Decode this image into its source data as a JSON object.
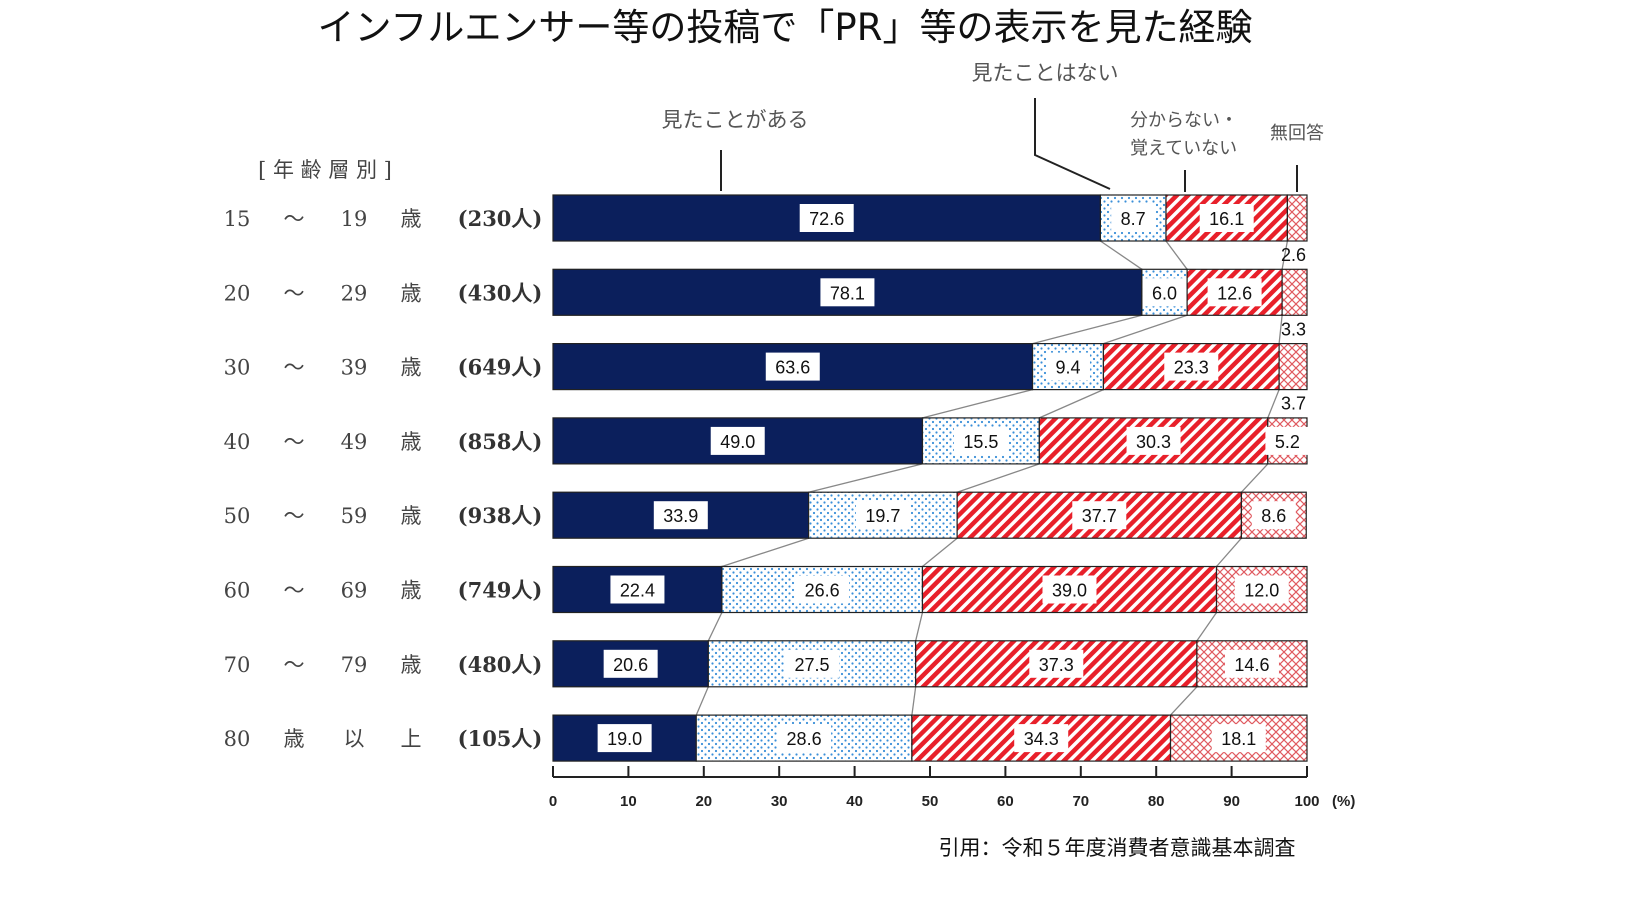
{
  "chart_data": {
    "type": "bar",
    "orientation": "horizontal",
    "stacked": true,
    "title": "インフルエンサー等の投稿で「PR」等の表示を見た経験",
    "group_header": "[ 年 齢 層 別 ]",
    "categories": [
      {
        "parts": [
          "15",
          "〜",
          "19",
          "歳"
        ],
        "n": "(230人)"
      },
      {
        "parts": [
          "20",
          "〜",
          "29",
          "歳"
        ],
        "n": "(430人)"
      },
      {
        "parts": [
          "30",
          "〜",
          "39",
          "歳"
        ],
        "n": "(649人)"
      },
      {
        "parts": [
          "40",
          "〜",
          "49",
          "歳"
        ],
        "n": "(858人)"
      },
      {
        "parts": [
          "50",
          "〜",
          "59",
          "歳"
        ],
        "n": "(938人)"
      },
      {
        "parts": [
          "60",
          "〜",
          "69",
          "歳"
        ],
        "n": "(749人)"
      },
      {
        "parts": [
          "70",
          "〜",
          "79",
          "歳"
        ],
        "n": "(480人)"
      },
      {
        "parts": [
          "80",
          "歳",
          "以",
          "上"
        ],
        "n": "(105人)"
      }
    ],
    "series": [
      {
        "name": "見たことがある",
        "color": "#0b1f5c",
        "values": [
          72.6,
          78.1,
          63.6,
          49.0,
          33.9,
          22.4,
          20.6,
          19.0
        ]
      },
      {
        "name": "見たことはない",
        "color": "#3a8fd8",
        "values": [
          8.7,
          6.0,
          9.4,
          15.5,
          19.7,
          26.6,
          27.5,
          28.6
        ]
      },
      {
        "name_lines": [
          "分からない・",
          "覚えていない"
        ],
        "color": "#e8202a",
        "values": [
          16.1,
          12.6,
          23.3,
          30.3,
          37.7,
          39.0,
          37.3,
          34.3
        ]
      },
      {
        "name": "無回答",
        "color": "#e05a60",
        "values": [
          2.6,
          3.3,
          3.7,
          5.2,
          8.6,
          12.0,
          14.6,
          18.1
        ]
      }
    ],
    "xlim": [
      0,
      100
    ],
    "xticks": [
      "0",
      "10",
      "20",
      "30",
      "40",
      "50",
      "60",
      "70",
      "80",
      "90",
      "100"
    ],
    "xunit": "(%)",
    "source": "引用：令和５年度消費者意識基本調査"
  }
}
